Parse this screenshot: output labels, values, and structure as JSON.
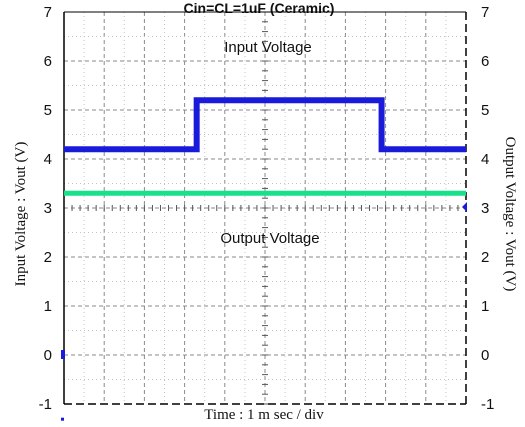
{
  "chart_data": {
    "type": "line",
    "title": "Cin=CL=1uF (Ceramic)",
    "xlabel": "Time : 1 m sec / div",
    "ylabel_left": "Input Voltage : Vout (V)",
    "ylabel_right": "Output Voltage : Vout (V)",
    "ylim": [
      -1,
      7
    ],
    "y_ticks": [
      "-1",
      "0",
      "1",
      "2",
      "3",
      "4",
      "5",
      "6",
      "7"
    ],
    "x_divisions": 10,
    "grid": true,
    "annotations": [
      "Input Voltage",
      "Output Voltage"
    ],
    "series": [
      {
        "color": "#1a1adb",
        "x": [
          0,
          3.3,
          3.3,
          7.9,
          7.9,
          10
        ],
        "values": [
          4.2,
          4.2,
          5.2,
          5.2,
          4.2,
          4.2
        ]
      },
      {
        "color": "#19e08a",
        "x": [
          0,
          10
        ],
        "values": [
          3.3,
          3.3
        ]
      }
    ]
  }
}
